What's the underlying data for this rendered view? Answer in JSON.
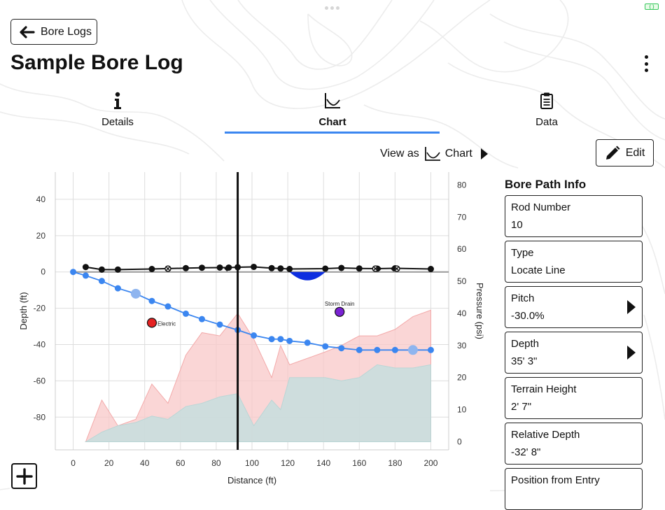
{
  "header": {
    "back_label": "Bore Logs",
    "title": "Sample Bore Log"
  },
  "tabs": [
    {
      "label": "Details",
      "icon": "info-icon",
      "active": false
    },
    {
      "label": "Chart",
      "icon": "chart-icon",
      "active": true
    },
    {
      "label": "Data",
      "icon": "clipboard-icon",
      "active": false
    }
  ],
  "view_as": {
    "prefix": "View as",
    "value": "Chart"
  },
  "edit_label": "Edit",
  "colors": {
    "accent": "#3b86f0",
    "bore": "#3b86f0",
    "pressure_fill": "#f8c8c8",
    "pressure2_fill": "#c9dede",
    "utility_blue": "#0d2ee0",
    "electric": "#e52222",
    "storm": "#7a22d4"
  },
  "panel": {
    "title": "Bore Path Info",
    "cards": [
      {
        "label": "Rod Number",
        "value": "10",
        "chevron": false
      },
      {
        "label": "Type",
        "value": "Locate Line",
        "chevron": false
      },
      {
        "label": "Pitch",
        "value": "-30.0%",
        "chevron": true
      },
      {
        "label": "Depth",
        "value": "35' 3\"",
        "chevron": true
      },
      {
        "label": "Terrain Height",
        "value": "2' 7\"",
        "chevron": false
      },
      {
        "label": "Relative Depth",
        "value": "-32' 8\"",
        "chevron": false
      },
      {
        "label": "Position from Entry",
        "value": "",
        "chevron": false
      }
    ]
  },
  "chart_data": {
    "type": "line",
    "xlabel": "Distance (ft)",
    "ylabel": "Depth (ft)",
    "y2label": "Pressure (psi)",
    "xlim": [
      -10,
      210
    ],
    "ylim": [
      -98,
      55
    ],
    "y2lim": [
      -2.5,
      84
    ],
    "xticks": [
      "0",
      "20",
      "40",
      "60",
      "80",
      "100",
      "120",
      "140",
      "160",
      "180",
      "200"
    ],
    "yticks": [
      "40",
      "20",
      "0",
      "-20",
      "-40",
      "-60",
      "-80"
    ],
    "y2ticks": [
      "80",
      "70",
      "60",
      "50",
      "40",
      "30",
      "20",
      "10",
      "0"
    ],
    "cursor_x": 92,
    "series": [
      {
        "name": "Bore Path",
        "x": [
          0,
          7,
          16,
          25,
          35,
          44,
          53,
          63,
          72,
          82,
          92,
          101,
          111,
          116,
          121,
          131,
          141,
          150,
          160,
          170,
          180,
          190,
          200
        ],
        "y": [
          0,
          -2,
          -5,
          -9,
          -12,
          -16,
          -19,
          -23,
          -26,
          -29,
          -32,
          -35,
          -37,
          -37,
          -38,
          -39,
          -41,
          -42,
          -43,
          -43,
          -43,
          -43,
          -43
        ]
      },
      {
        "name": "Terrain",
        "x": [
          7,
          16,
          25,
          44,
          63,
          72,
          82,
          87,
          92,
          101,
          111,
          116,
          121,
          141,
          150,
          160,
          170,
          180,
          200
        ],
        "y": [
          2.7,
          1.3,
          1.3,
          1.6,
          2.1,
          2.3,
          2.4,
          2.4,
          2.6,
          2.8,
          2.1,
          1.9,
          1.6,
          1.8,
          2.2,
          1.9,
          1.8,
          2.0,
          1.6
        ]
      },
      {
        "name": "Pressure",
        "x": [
          7,
          16,
          25,
          35,
          44,
          53,
          63,
          72,
          82,
          92,
          101,
          111,
          116,
          121,
          141,
          150,
          160,
          170,
          180,
          190,
          200
        ],
        "y": [
          0,
          13,
          5,
          7,
          18,
          12,
          27,
          34,
          33,
          40,
          32,
          20,
          30,
          24,
          28,
          30,
          33,
          33,
          35,
          39,
          41
        ]
      },
      {
        "name": "Pressure 2",
        "x": [
          7,
          16,
          25,
          35,
          44,
          53,
          63,
          72,
          82,
          92,
          101,
          111,
          116,
          121,
          131,
          141,
          150,
          160,
          170,
          180,
          190,
          200
        ],
        "y": [
          0,
          3,
          5,
          6,
          8,
          7,
          11,
          12,
          14,
          15,
          5,
          13,
          10,
          20,
          20,
          20,
          19,
          20,
          24,
          23,
          23,
          24
        ]
      }
    ],
    "highlight_points": [
      {
        "x": 35,
        "y": -12
      },
      {
        "x": 190,
        "y": -43
      }
    ],
    "terrain_markers": [
      {
        "x": 53,
        "shape": "x"
      },
      {
        "x": 86,
        "shape": "diamond"
      },
      {
        "x": 169,
        "shape": "x"
      },
      {
        "x": 171,
        "shape": "diamond"
      },
      {
        "x": 181,
        "shape": "x"
      },
      {
        "x": 179,
        "shape": "diamond"
      }
    ],
    "utilities": [
      {
        "name": "Electric",
        "x": 44,
        "y": -28
      },
      {
        "name": "Storm Drain",
        "x": 149,
        "y": -22
      }
    ],
    "blue_pipe": {
      "x_start": 121,
      "x_end": 141,
      "depth": -4
    }
  }
}
